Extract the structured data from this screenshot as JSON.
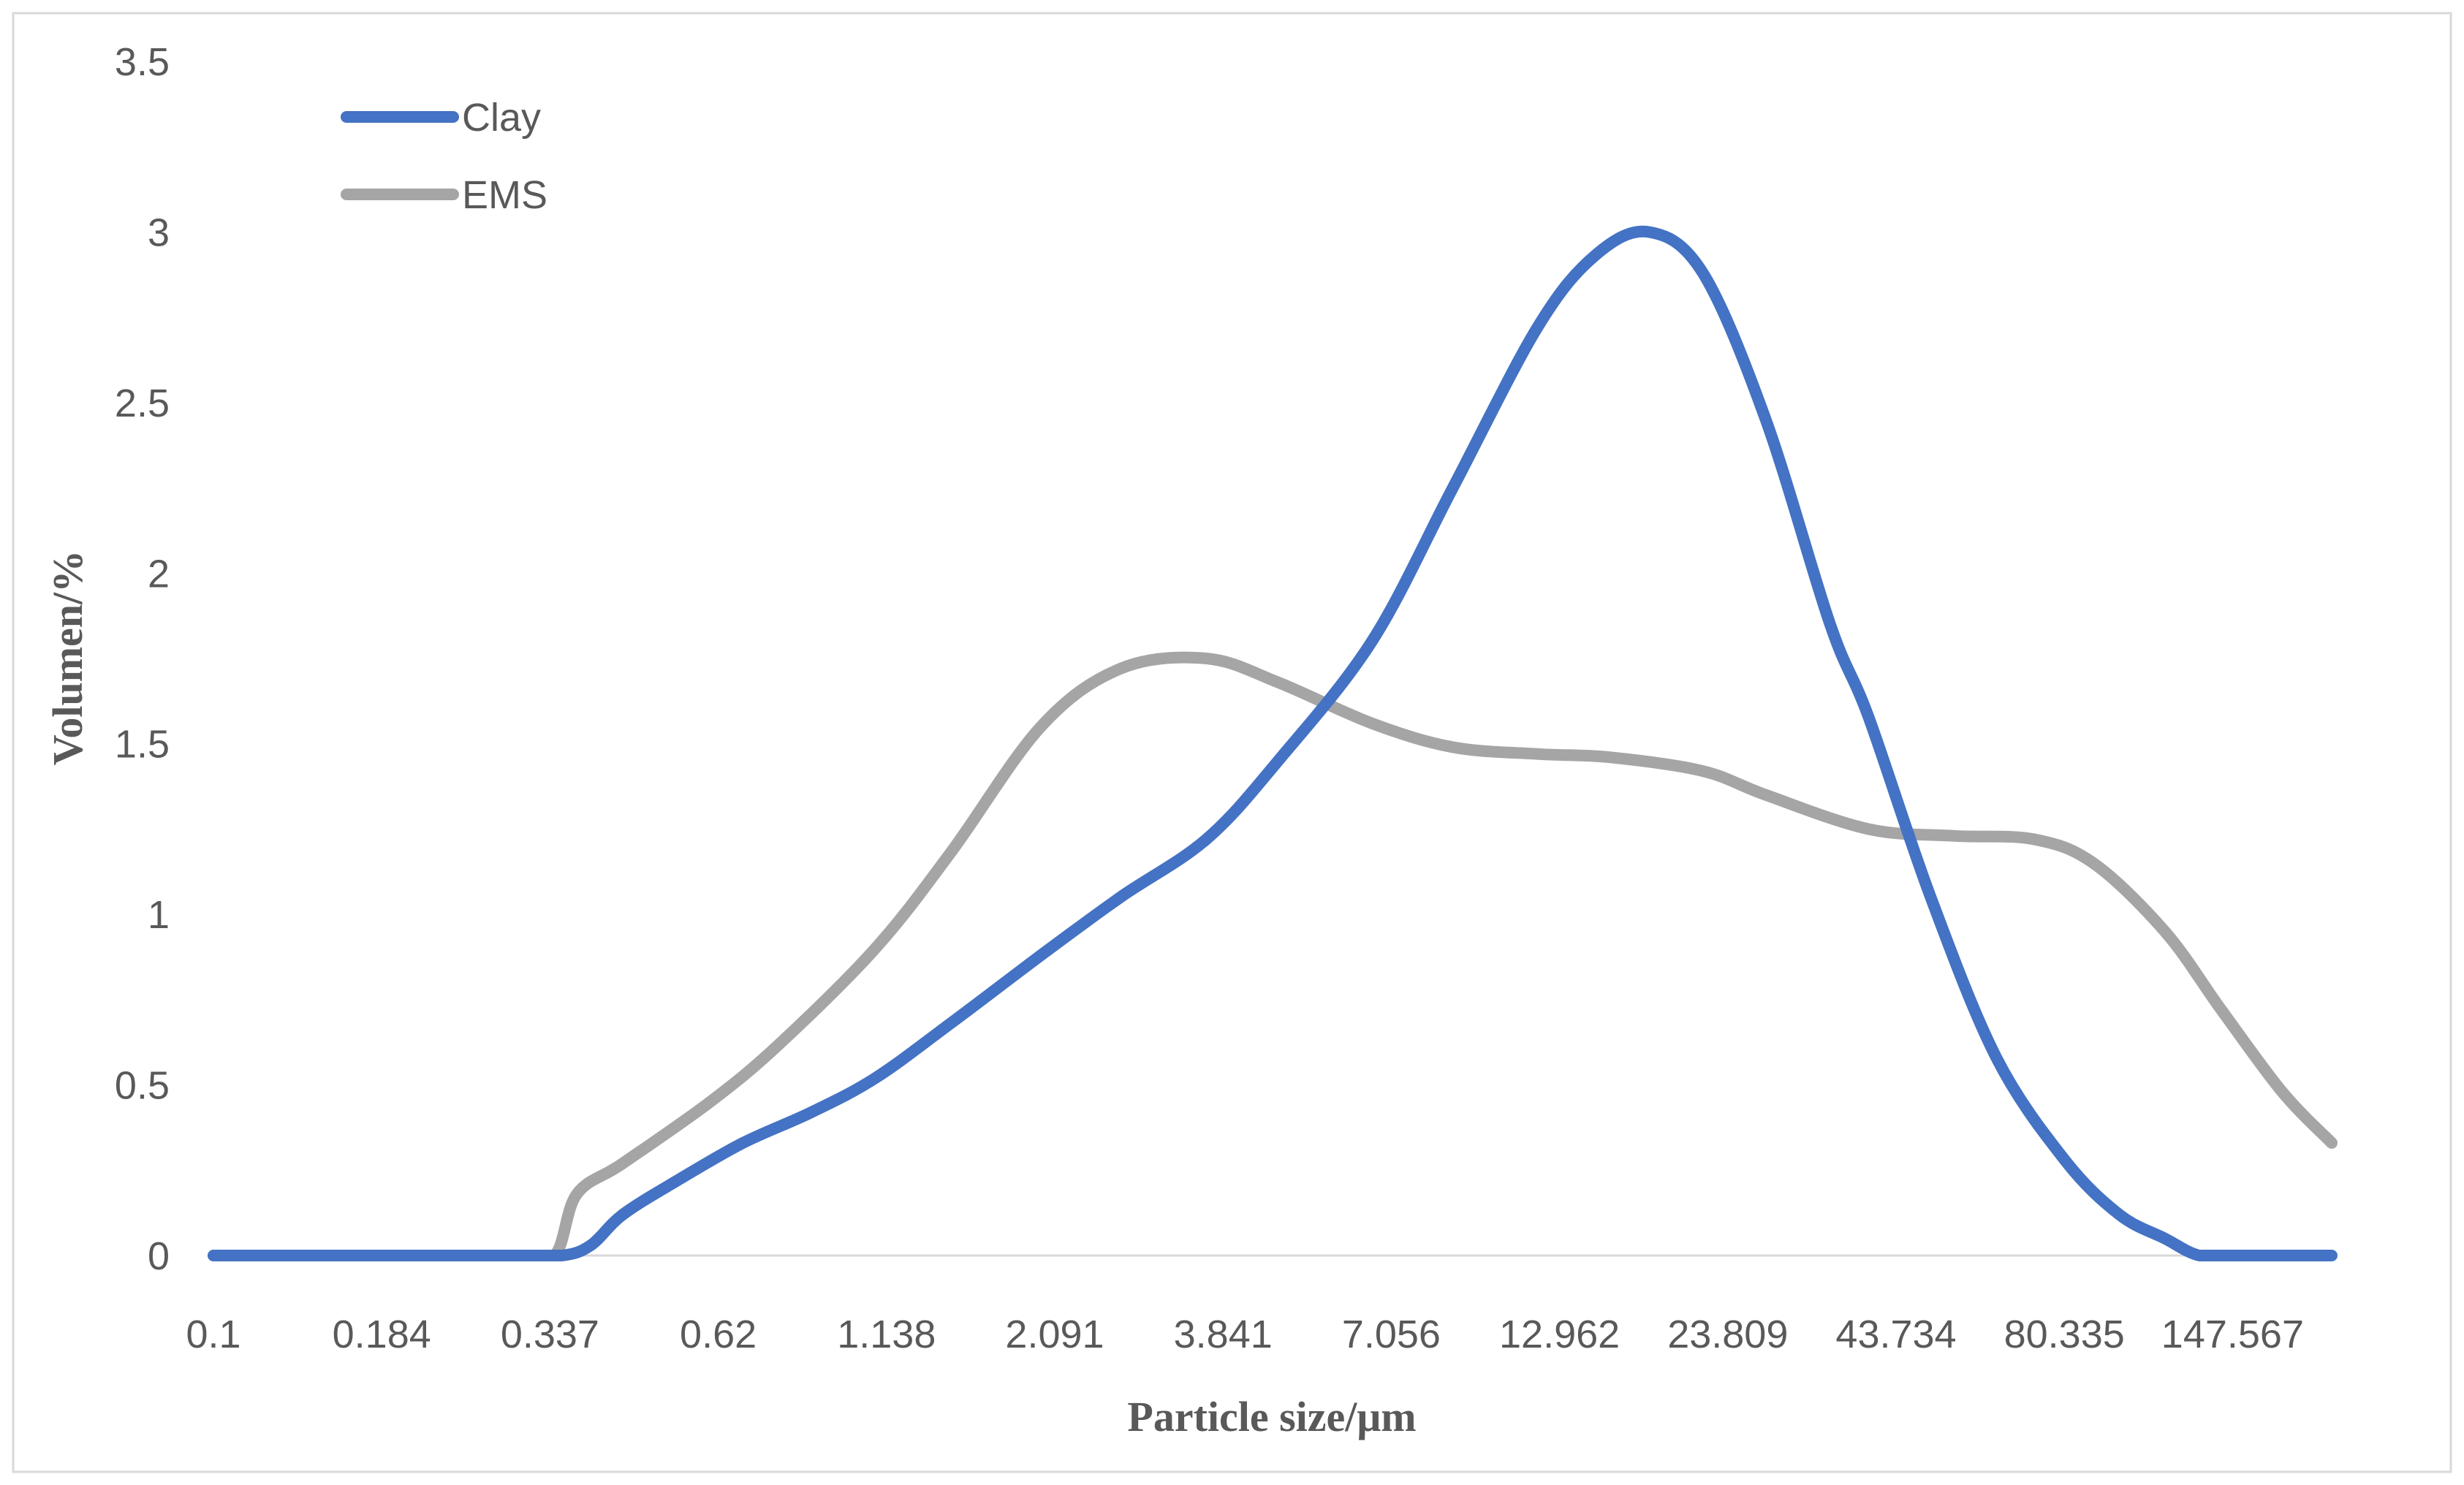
{
  "chart_data": {
    "type": "line",
    "title": "",
    "xlabel": "Particle size/μm",
    "ylabel": "Volumen/%",
    "x_scale": "log",
    "x_tick_labels": [
      "0.1",
      "0.184",
      "0.337",
      "0.62",
      "1.138",
      "2.091",
      "3.841",
      "7.056",
      "12.962",
      "23.809",
      "43.734",
      "80.335",
      "147.567"
    ],
    "xlim": [
      0.1,
      240
    ],
    "ylim": [
      0,
      3.5
    ],
    "y_tick_labels": [
      "0",
      "0.5",
      "1",
      "1.5",
      "2",
      "2.5",
      "3",
      "3.5"
    ],
    "y_ticks": [
      0,
      0.5,
      1,
      1.5,
      2,
      2.5,
      3,
      3.5
    ],
    "grid": false,
    "legend_position": "top-left",
    "series": [
      {
        "name": "Clay",
        "color": "#4472C4",
        "points": [
          [
            0.1,
            0
          ],
          [
            0.2,
            0
          ],
          [
            0.3,
            0
          ],
          [
            0.36,
            0
          ],
          [
            0.4,
            0.03
          ],
          [
            0.45,
            0.12
          ],
          [
            0.55,
            0.22
          ],
          [
            0.7,
            0.33
          ],
          [
            0.9,
            0.42
          ],
          [
            1.138,
            0.52
          ],
          [
            1.5,
            0.68
          ],
          [
            2.091,
            0.88
          ],
          [
            2.8,
            1.05
          ],
          [
            3.841,
            1.22
          ],
          [
            5.0,
            1.45
          ],
          [
            7.056,
            1.8
          ],
          [
            9.5,
            2.25
          ],
          [
            12.962,
            2.72
          ],
          [
            16.0,
            2.93
          ],
          [
            19.5,
            3.0
          ],
          [
            23.809,
            2.88
          ],
          [
            30.0,
            2.45
          ],
          [
            38.0,
            1.85
          ],
          [
            43.734,
            1.58
          ],
          [
            55.0,
            1.05
          ],
          [
            70.0,
            0.58
          ],
          [
            90.0,
            0.28
          ],
          [
            110.0,
            0.12
          ],
          [
            130.0,
            0.05
          ],
          [
            147.567,
            0
          ],
          [
            170.0,
            0
          ],
          [
            240.0,
            0
          ]
        ]
      },
      {
        "name": "EMS",
        "color": "#A5A5A5",
        "points": [
          [
            0.1,
            0
          ],
          [
            0.2,
            0
          ],
          [
            0.3,
            0
          ],
          [
            0.35,
            0
          ],
          [
            0.38,
            0.18
          ],
          [
            0.45,
            0.27
          ],
          [
            0.62,
            0.45
          ],
          [
            0.8,
            0.62
          ],
          [
            1.138,
            0.9
          ],
          [
            1.5,
            1.18
          ],
          [
            2.091,
            1.55
          ],
          [
            2.8,
            1.72
          ],
          [
            3.841,
            1.75
          ],
          [
            5.0,
            1.68
          ],
          [
            7.056,
            1.56
          ],
          [
            9.5,
            1.49
          ],
          [
            12.962,
            1.47
          ],
          [
            17.0,
            1.46
          ],
          [
            23.809,
            1.42
          ],
          [
            30.0,
            1.35
          ],
          [
            43.734,
            1.25
          ],
          [
            60.0,
            1.23
          ],
          [
            80.335,
            1.22
          ],
          [
            100.0,
            1.15
          ],
          [
            130.0,
            0.95
          ],
          [
            160.0,
            0.72
          ],
          [
            200.0,
            0.48
          ],
          [
            240.0,
            0.33
          ]
        ]
      }
    ]
  }
}
